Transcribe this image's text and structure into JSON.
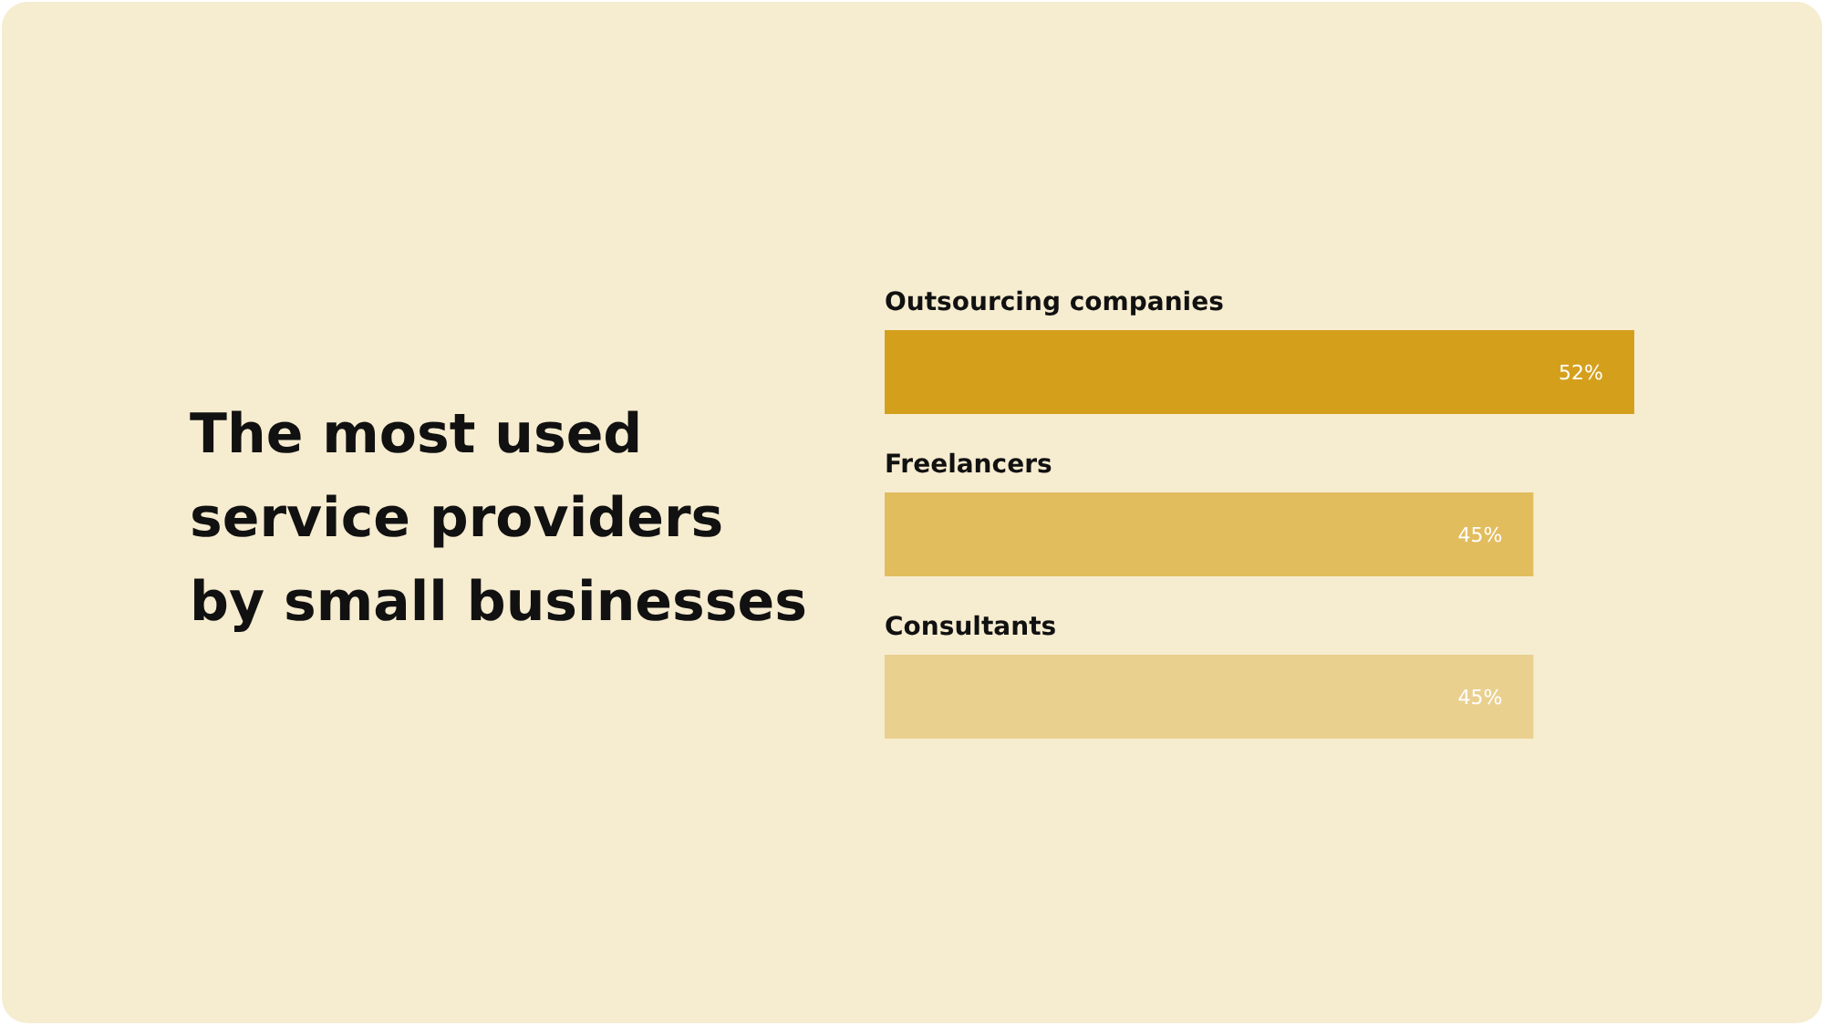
{
  "chart_data": {
    "type": "bar",
    "orientation": "horizontal",
    "title": "The most used service providers by small businesses",
    "categories": [
      "Outsourcing companies",
      "Freelancers",
      "Consultants"
    ],
    "values": [
      52,
      45,
      45
    ],
    "colors": [
      "#d4a01c",
      "#e2bd5e",
      "#e9d08f"
    ],
    "value_labels": [
      "52%",
      "45%",
      "45%"
    ]
  }
}
